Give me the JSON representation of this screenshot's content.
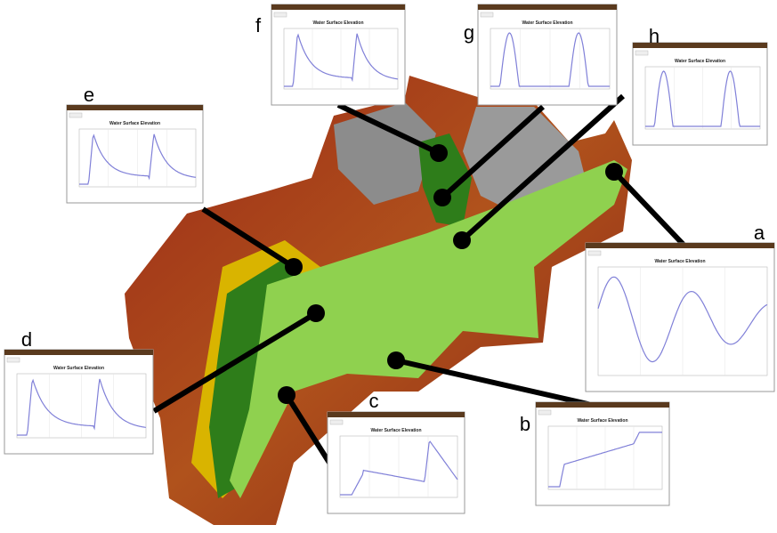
{
  "panels": [
    {
      "label": "a",
      "plot_title": "Water Surface Elevation"
    },
    {
      "label": "b",
      "plot_title": "Water Surface Elevation"
    },
    {
      "label": "c",
      "plot_title": "Water Surface Elevation"
    },
    {
      "label": "d",
      "plot_title": "Water Surface Elevation"
    },
    {
      "label": "e",
      "plot_title": "Water Surface Elevation"
    },
    {
      "label": "f",
      "plot_title": "Water Surface Elevation"
    },
    {
      "label": "g",
      "plot_title": "Water Surface Elevation"
    },
    {
      "label": "h",
      "plot_title": "Water Surface Elevation"
    }
  ]
}
